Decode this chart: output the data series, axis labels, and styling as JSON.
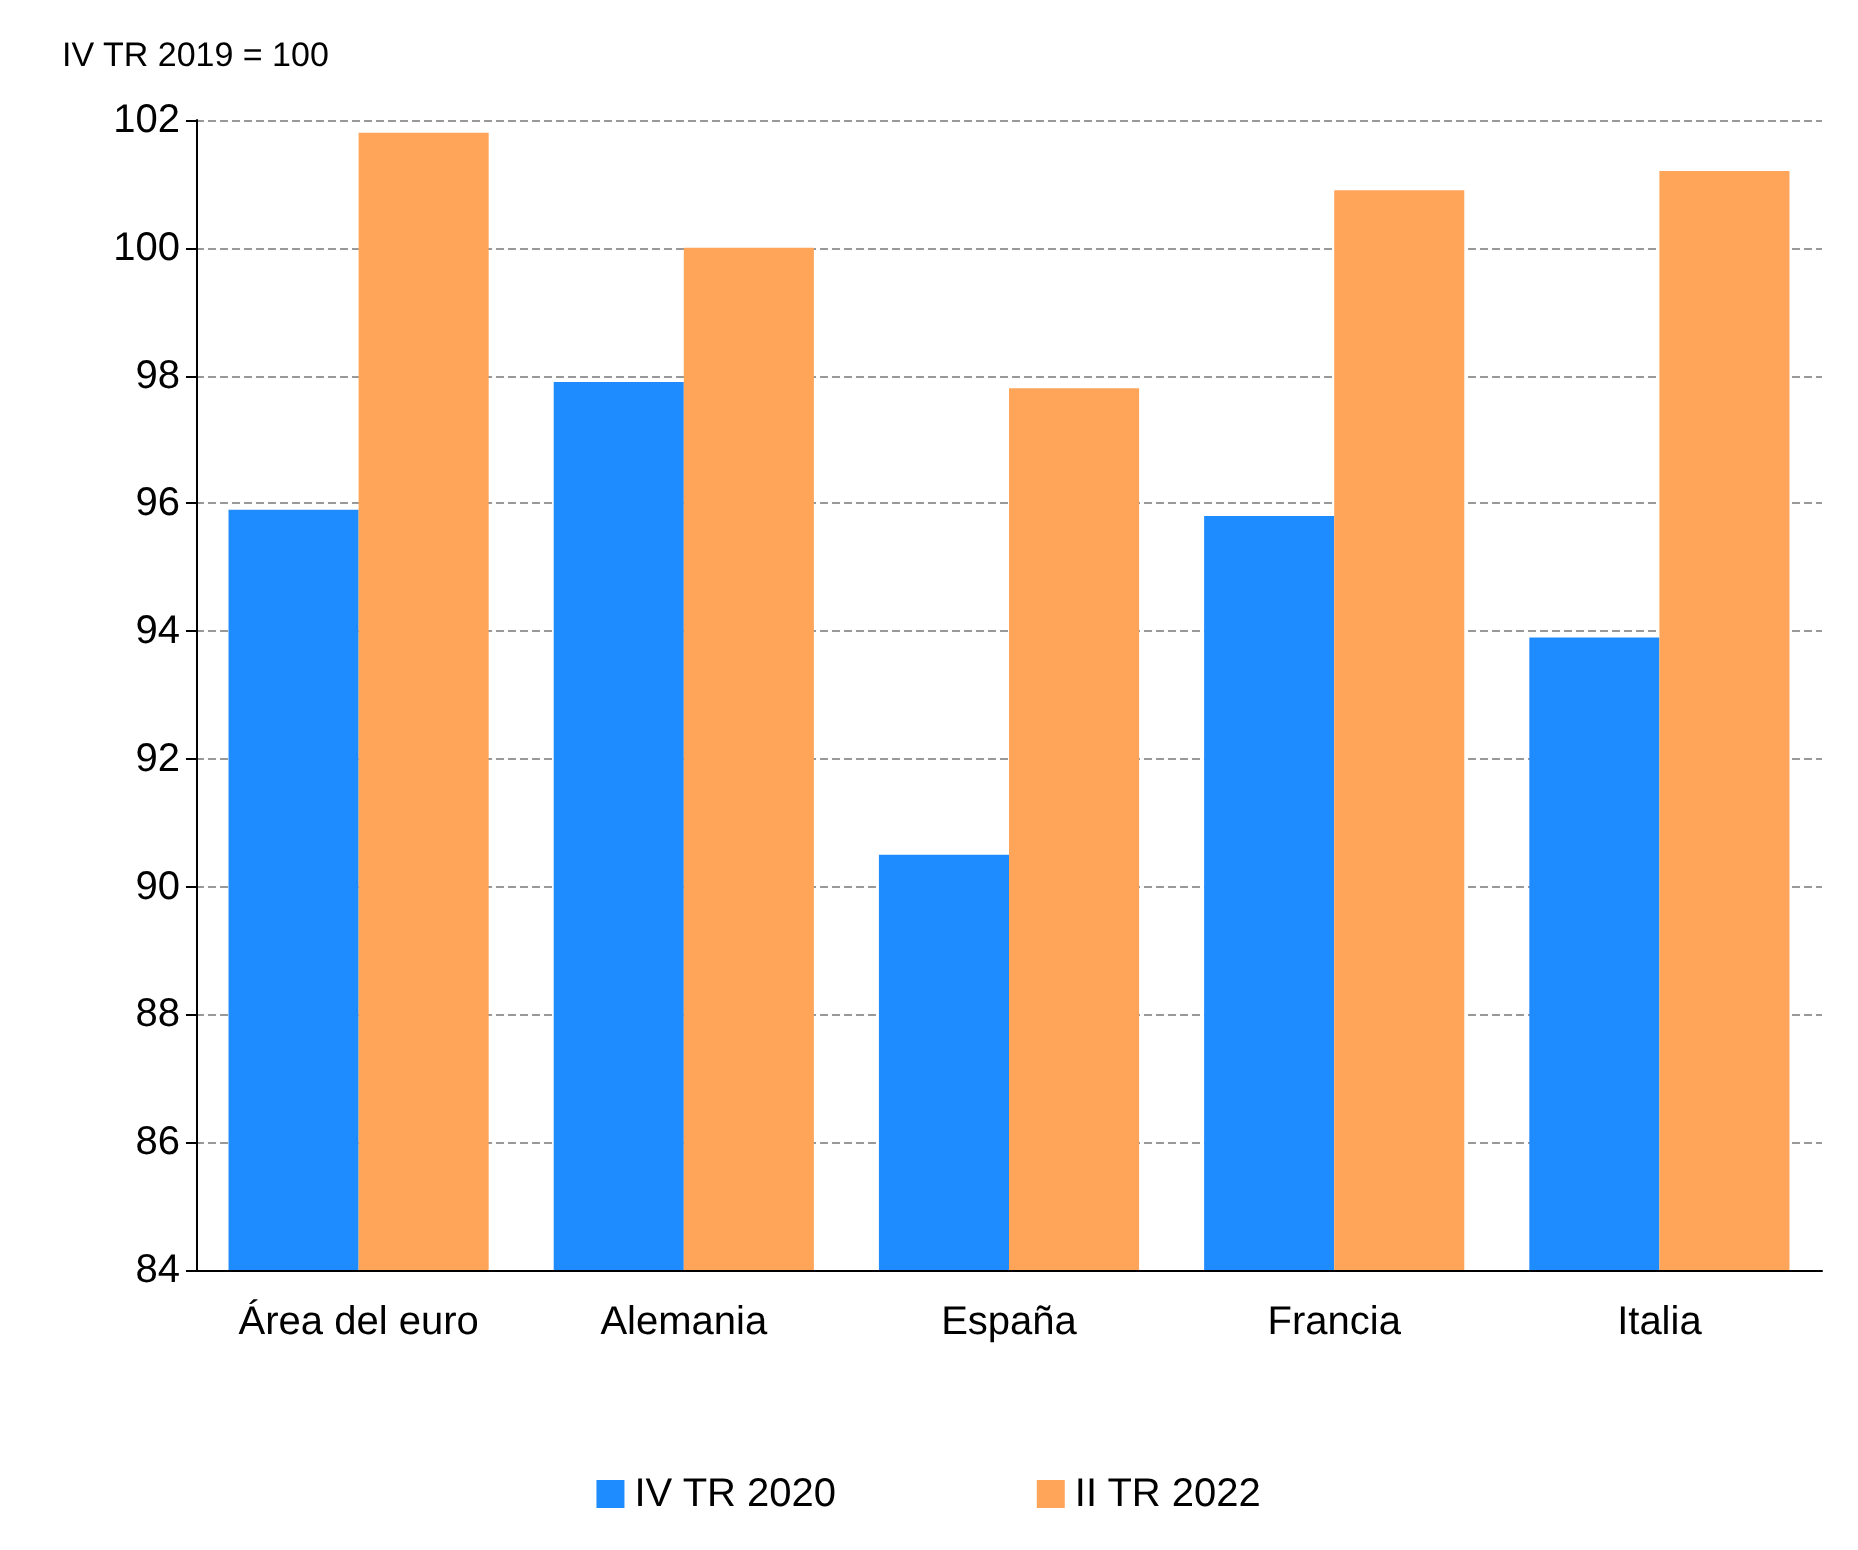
{
  "chart_data": {
    "type": "bar",
    "ylabel": "IV TR 2019 = 100",
    "categories": [
      "Área del euro",
      "Alemania",
      "España",
      "Francia",
      "Italia"
    ],
    "series": [
      {
        "name": "IV TR 2020",
        "color": "#1e8cff",
        "values": [
          95.9,
          97.9,
          90.5,
          95.8,
          93.9
        ]
      },
      {
        "name": "II TR 2022",
        "color": "#ffa55a",
        "values": [
          101.8,
          100.0,
          97.8,
          100.9,
          101.2
        ]
      }
    ],
    "ylim": [
      84,
      102
    ],
    "yticks": [
      84,
      86,
      88,
      90,
      92,
      94,
      96,
      98,
      100,
      102
    ],
    "grid": "y",
    "legend": "bottom"
  }
}
